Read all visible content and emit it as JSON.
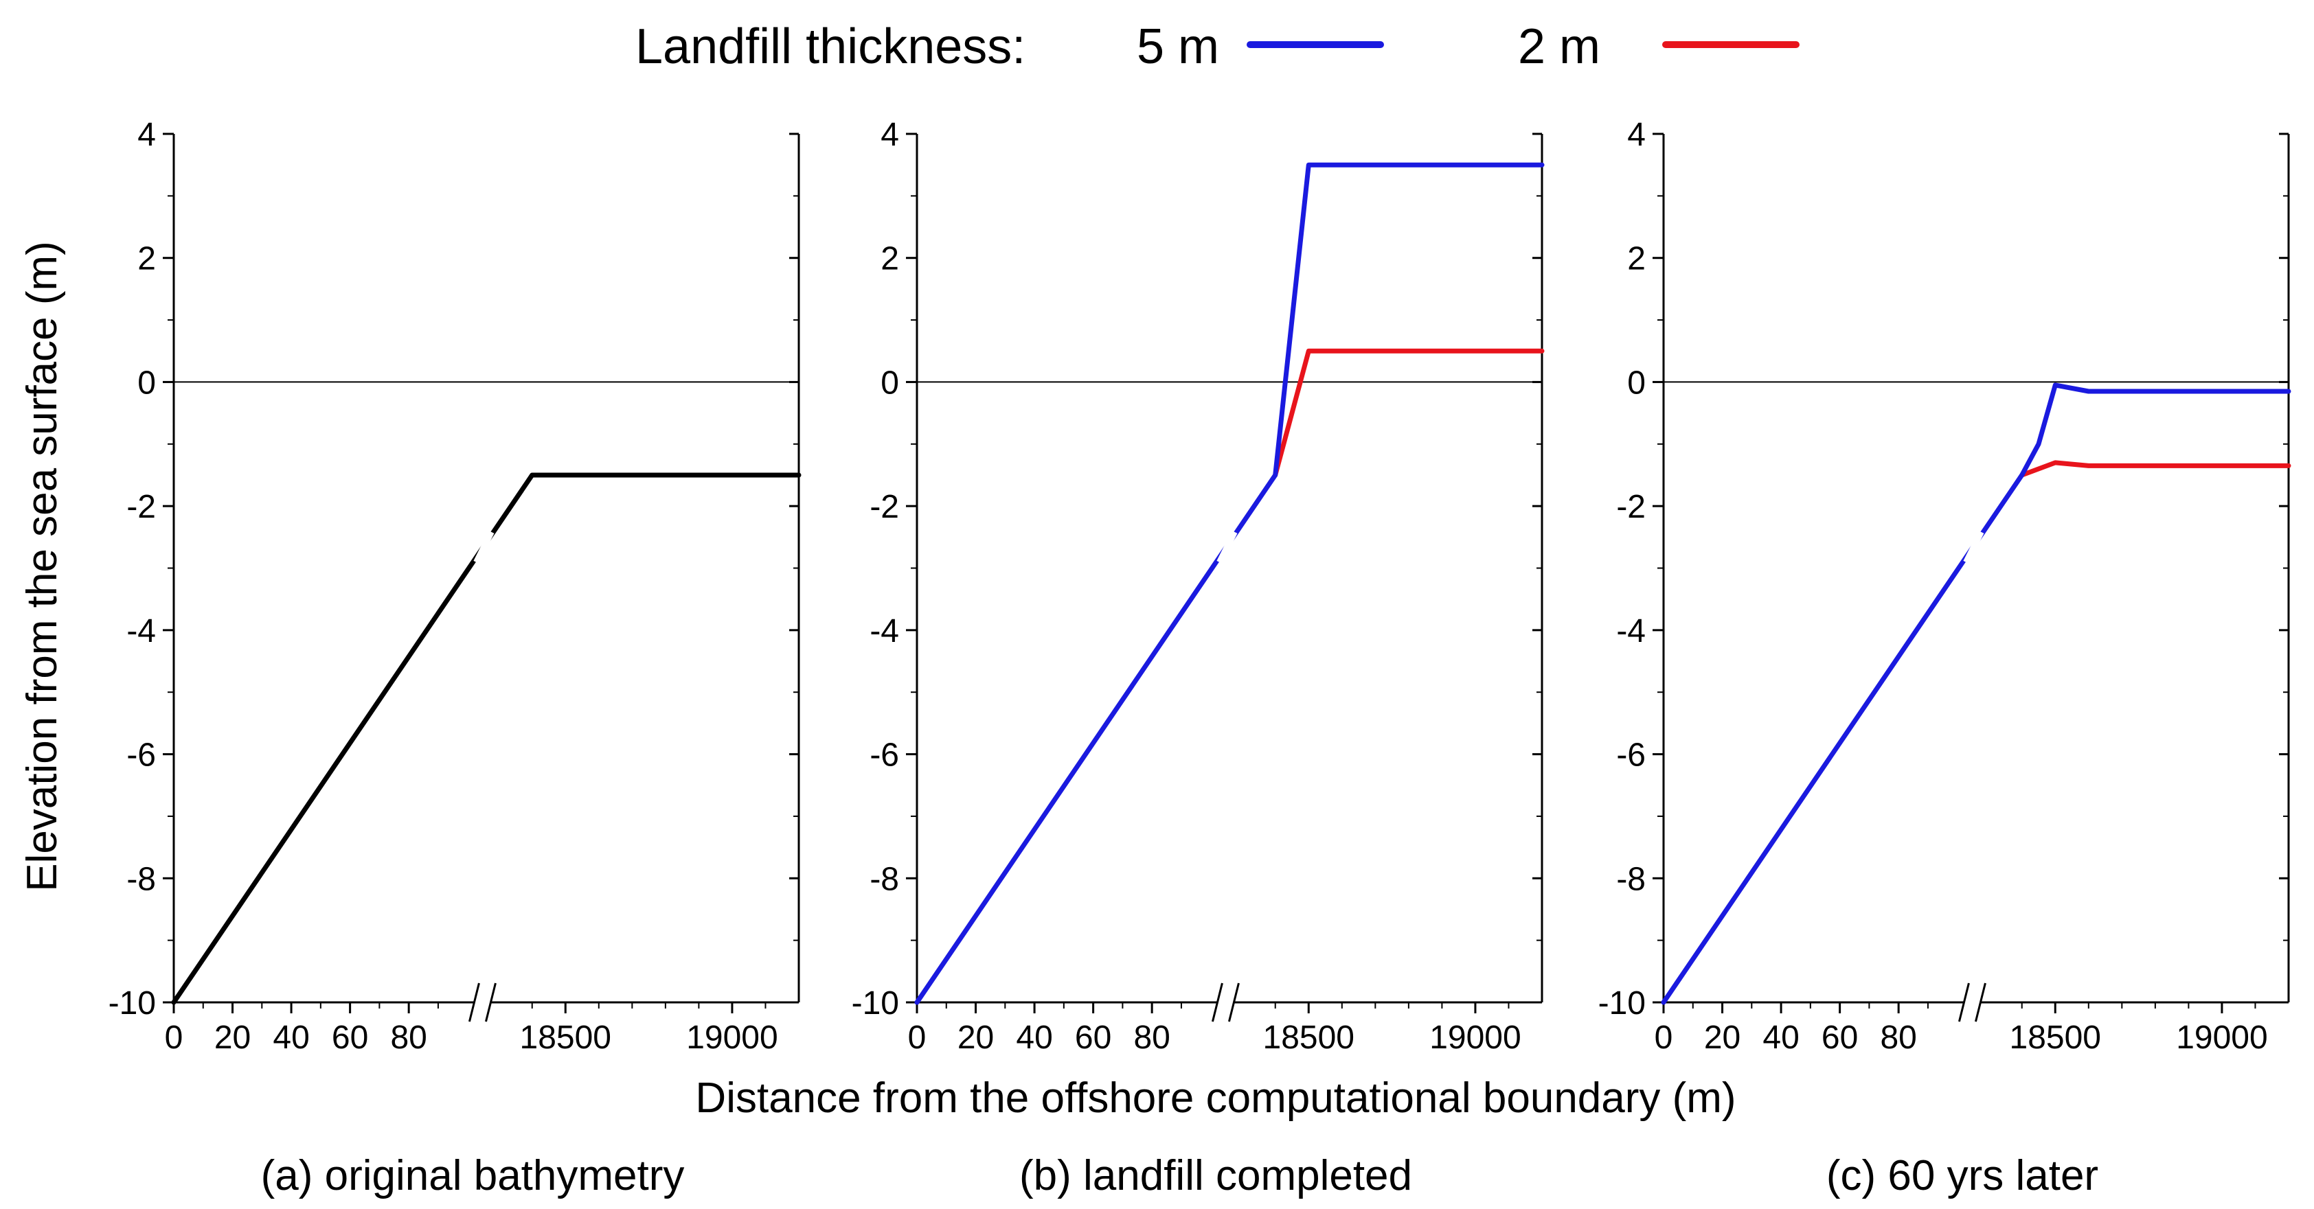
{
  "legend": {
    "title": "Landfill thickness:",
    "entries": [
      {
        "label": "5 m",
        "color": "#1a1adf"
      },
      {
        "label": "2 m",
        "color": "#e8141c"
      }
    ]
  },
  "xlabel": "Distance from the offshore computational boundary (m)",
  "ylabel": "Elevation from the sea surface (m)",
  "chart_data": [
    {
      "type": "line",
      "caption": "(a) original bathymetry",
      "xlabel": "Distance from the offshore computational boundary (m)",
      "ylabel": "Elevation from the sea surface (m)",
      "ylim": [
        -10,
        4
      ],
      "y_ticks": [
        4,
        2,
        0,
        -2,
        -4,
        -6,
        -8,
        -10
      ],
      "x_ticks_left": [
        "0",
        "20",
        "40",
        "60",
        "80"
      ],
      "x_ticks_right": [
        "18500",
        "19000"
      ],
      "axis_break": "//",
      "reference_line_y": 0,
      "series": [
        {
          "name": "original",
          "color": "#000000",
          "points": [
            [
              "0",
              -10
            ],
            [
              "~18400",
              -1.5
            ],
            [
              "19200",
              -1.5
            ]
          ]
        }
      ]
    },
    {
      "type": "line",
      "caption": "(b) landfill completed",
      "xlabel": "Distance from the offshore computational boundary (m)",
      "ylabel": "Elevation from the sea surface (m)",
      "ylim": [
        -10,
        4
      ],
      "y_ticks": [
        4,
        2,
        0,
        -2,
        -4,
        -6,
        -8,
        -10
      ],
      "x_ticks_left": [
        "0",
        "20",
        "40",
        "60",
        "80"
      ],
      "x_ticks_right": [
        "18500",
        "19000"
      ],
      "axis_break": "//",
      "reference_line_y": 0,
      "series": [
        {
          "name": "5 m",
          "color": "#1a1adf",
          "points": [
            [
              "0",
              -10
            ],
            [
              "~18400",
              -1.5
            ],
            [
              "18500",
              3.5
            ],
            [
              "19200",
              3.5
            ]
          ]
        },
        {
          "name": "2 m",
          "color": "#e8141c",
          "points": [
            [
              "~18400",
              -1.5
            ],
            [
              "18500",
              0.5
            ],
            [
              "19200",
              0.5
            ]
          ]
        }
      ]
    },
    {
      "type": "line",
      "caption": "(c) 60 yrs later",
      "xlabel": "Distance from the offshore computational boundary (m)",
      "ylabel": "Elevation from the sea surface (m)",
      "ylim": [
        -10,
        4
      ],
      "y_ticks": [
        4,
        2,
        0,
        -2,
        -4,
        -6,
        -8,
        -10
      ],
      "x_ticks_left": [
        "0",
        "20",
        "40",
        "60",
        "80"
      ],
      "x_ticks_right": [
        "18500",
        "19000"
      ],
      "axis_break": "//",
      "reference_line_y": 0,
      "series": [
        {
          "name": "5 m",
          "color": "#1a1adf",
          "points": [
            [
              "0",
              -10
            ],
            [
              "~18400",
              -1.5
            ],
            [
              "~18450",
              -1.0
            ],
            [
              "18500",
              -0.05
            ],
            [
              "18600",
              -0.15
            ],
            [
              "19200",
              -0.15
            ]
          ]
        },
        {
          "name": "2 m",
          "color": "#e8141c",
          "points": [
            [
              "~18400",
              -1.5
            ],
            [
              "18500",
              -1.3
            ],
            [
              "18600",
              -1.35
            ],
            [
              "19200",
              -1.35
            ]
          ]
        }
      ]
    }
  ]
}
